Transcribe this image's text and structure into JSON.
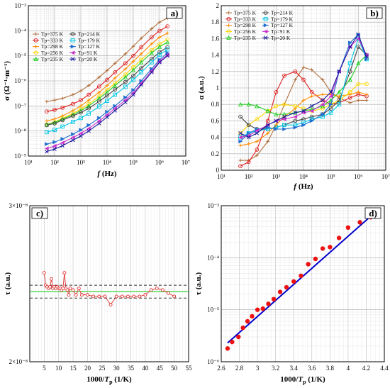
{
  "chart_data": [
    {
      "id": "a",
      "type": "line",
      "panel_label": "a)",
      "xlabel": "f (Hz)",
      "xlabel_main": "f",
      "xlabel_unit": " (Hz)",
      "ylabel": "σ (Ω⁻¹·m⁻¹)",
      "x_scale": "log",
      "y_scale": "log",
      "xlim_exp": [
        1,
        7
      ],
      "ylim_exp": [
        -9,
        -3
      ],
      "x_tick_labels": [
        "10¹",
        "10²",
        "10³",
        "10⁴",
        "10⁵",
        "10⁶",
        "10⁷"
      ],
      "y_tick_labels": [
        "10⁻⁹",
        "10⁻⁸",
        "10⁻⁷",
        "10⁻⁶",
        "10⁻⁵",
        "10⁻⁴",
        "10⁻³"
      ],
      "grid": true,
      "legend": "top-left",
      "x": [
        50,
        100,
        200,
        500,
        1000,
        2000,
        5000,
        10000,
        20000,
        50000,
        100000,
        200000,
        500000,
        1000000,
        2000000
      ],
      "series": [
        {
          "name": "Tp=375 K",
          "color": "#b07040",
          "marker": "+",
          "values": [
            1.5e-07,
            1.7e-07,
            2e-07,
            2.8e-07,
            4e-07,
            6.5e-07,
            1.4e-06,
            2.6e-06,
            5e-06,
            1.2e-05,
            2.4e-05,
            5e-05,
            0.00012,
            0.00022,
            0.00032
          ]
        },
        {
          "name": "Tp=333 K",
          "color": "#e02020",
          "marker": "o",
          "values": [
            6e-08,
            7e-08,
            8.5e-08,
            1.2e-07,
            1.7e-07,
            2.8e-07,
            6e-07,
            1.1e-06,
            2.2e-06,
            5e-06,
            1e-05,
            2.2e-05,
            5.5e-05,
            0.0001,
            0.00015
          ]
        },
        {
          "name": "Tp=298 K",
          "color": "#ff8c00",
          "marker": "+",
          "values": [
            2.5e-08,
            3e-08,
            4e-08,
            6.5e-08,
            1e-07,
            1.7e-07,
            3.5e-07,
            6.5e-07,
            1.3e-06,
            3e-06,
            6e-06,
            1.2e-05,
            3e-05,
            5.5e-05,
            8e-05
          ]
        },
        {
          "name": "Tp=256 K",
          "color": "#ffd700",
          "marker": "o",
          "values": [
            1.8e-08,
            2.3e-08,
            3.2e-08,
            5e-08,
            7.5e-08,
            1.2e-07,
            2.4e-07,
            4.3e-07,
            8e-07,
            1.8e-06,
            3.5e-06,
            7e-06,
            1.7e-05,
            3e-05,
            4.5e-05
          ]
        },
        {
          "name": "Tp=235 K",
          "color": "#22cc22",
          "marker": "^",
          "values": [
            1.8e-08,
            2.2e-08,
            3e-08,
            4.5e-08,
            6.5e-08,
            1e-07,
            2e-07,
            3.5e-07,
            6.5e-07,
            1.4e-06,
            2.7e-06,
            5.5e-06,
            1.3e-05,
            2.3e-05,
            3.5e-05
          ]
        },
        {
          "name": "Tp=214 K",
          "color": "#444444",
          "marker": "o",
          "values": [
            1.7e-08,
            2e-08,
            2.7e-08,
            4e-08,
            5.5e-08,
            8e-08,
            1.5e-07,
            2.6e-07,
            4.5e-07,
            9e-07,
            1.6e-06,
            3.2e-06,
            7.5e-06,
            1.4e-05,
            2.2e-05
          ]
        },
        {
          "name": "Tp=179 K",
          "color": "#00c8e8",
          "marker": "s",
          "values": [
            9e-09,
            1.1e-08,
            1.5e-08,
            2.3e-08,
            3.3e-08,
            5e-08,
            9.5e-08,
            1.6e-07,
            2.8e-07,
            5.8e-07,
            1.1e-06,
            2.2e-06,
            5.5e-06,
            1.1e-05,
            1.8e-05
          ]
        },
        {
          "name": "Tp=127 K",
          "color": "#1e6ed0",
          "marker": ">",
          "values": [
            3e-09,
            3.6e-09,
            4.8e-09,
            7.5e-09,
            1.1e-08,
            1.7e-08,
            3.3e-08,
            5.8e-08,
            1e-07,
            2.2e-07,
            4.3e-07,
            1e-06,
            3e-06,
            7e-06,
            1.3e-05
          ]
        },
        {
          "name": "Tp=91 K",
          "color": "#cc33cc",
          "marker": "<",
          "values": [
            2e-09,
            2.5e-09,
            3.4e-09,
            5.5e-09,
            8e-09,
            1.25e-08,
            2.5e-08,
            4.4e-08,
            8e-08,
            1.7e-07,
            3.3e-07,
            8e-07,
            2.5e-06,
            6e-06,
            1.1e-05
          ]
        },
        {
          "name": "Tp=20 K",
          "color": "#1a1a9e",
          "marker": "x",
          "values": [
            1.5e-09,
            1.9e-09,
            2.6e-09,
            4.3e-09,
            6.3e-09,
            1e-08,
            2e-08,
            3.6e-08,
            6.5e-08,
            1.4e-07,
            2.8e-07,
            7e-07,
            2.2e-06,
            5.5e-06,
            1e-05
          ]
        }
      ]
    },
    {
      "id": "b",
      "type": "line",
      "panel_label": "b)",
      "xlabel": "f (Hz)",
      "xlabel_main": "f",
      "xlabel_unit": " (Hz)",
      "ylabel": "α (a.u.)",
      "x_scale": "log",
      "y_scale": "linear",
      "xlim_exp": [
        1,
        7
      ],
      "ylim": [
        0,
        2
      ],
      "x_tick_labels": [
        "10¹",
        "10²",
        "10³",
        "10⁴",
        "10⁵",
        "10⁶",
        "10⁷"
      ],
      "y_ticks": [
        0,
        0.2,
        0.4,
        0.6,
        0.8,
        1,
        1.2,
        1.4,
        1.6,
        1.8,
        2
      ],
      "y_tick_labels": [
        "0",
        "0.2",
        "0.4",
        "0.6",
        "0.8",
        "1",
        "1.2",
        "1.4",
        "1.6",
        "1.8",
        "2"
      ],
      "grid": true,
      "legend": "top-left",
      "x": [
        50,
        100,
        200,
        500,
        1000,
        2000,
        5000,
        10000,
        20000,
        50000,
        100000,
        200000,
        500000,
        1000000,
        2000000
      ],
      "series": [
        {
          "name": "Tp=375 K",
          "color": "#b07040",
          "marker": "+",
          "values": [
            0.12,
            0.12,
            0.18,
            0.35,
            0.55,
            0.8,
            1.1,
            1.25,
            1.22,
            1.1,
            0.95,
            0.88,
            0.82,
            0.85,
            0.85
          ]
        },
        {
          "name": "Tp=333 K",
          "color": "#e02020",
          "marker": "o",
          "values": [
            0.05,
            0.1,
            0.25,
            0.6,
            0.95,
            1.15,
            1.2,
            1.1,
            0.95,
            0.85,
            0.8,
            0.82,
            0.88,
            0.92,
            0.9
          ]
        },
        {
          "name": "Tp=298 K",
          "color": "#ff8c00",
          "marker": "+",
          "values": [
            0.3,
            0.32,
            0.35,
            0.45,
            0.55,
            0.65,
            0.75,
            0.85,
            0.9,
            0.92,
            0.92,
            0.9,
            0.92,
            0.95,
            0.92
          ]
        },
        {
          "name": "Tp=256 K",
          "color": "#ffd700",
          "marker": "o",
          "values": [
            0.45,
            0.55,
            0.62,
            0.72,
            0.78,
            0.8,
            0.78,
            0.75,
            0.72,
            0.75,
            0.8,
            0.85,
            0.95,
            1.05,
            1.05
          ]
        },
        {
          "name": "Tp=235 K",
          "color": "#22cc22",
          "marker": "^",
          "values": [
            0.8,
            0.8,
            0.78,
            0.72,
            0.68,
            0.68,
            0.7,
            0.72,
            0.74,
            0.78,
            0.85,
            0.95,
            1.1,
            1.3,
            1.4
          ]
        },
        {
          "name": "Tp=214 K",
          "color": "#444444",
          "marker": "o",
          "values": [
            0.65,
            0.55,
            0.5,
            0.5,
            0.52,
            0.55,
            0.6,
            0.62,
            0.65,
            0.68,
            0.75,
            0.85,
            1.2,
            1.5,
            1.4
          ]
        },
        {
          "name": "Tp=179 K",
          "color": "#00c8e8",
          "marker": "s",
          "values": [
            0.4,
            0.45,
            0.48,
            0.5,
            0.52,
            0.55,
            0.55,
            0.58,
            0.62,
            0.65,
            0.7,
            0.8,
            1.3,
            1.6,
            1.35
          ]
        },
        {
          "name": "Tp=127 K",
          "color": "#1e6ed0",
          "marker": ">",
          "values": [
            0.35,
            0.45,
            0.5,
            0.52,
            0.5,
            0.5,
            0.52,
            0.55,
            0.6,
            0.68,
            0.8,
            1.2,
            1.55,
            1.65,
            1.35
          ]
        },
        {
          "name": "Tp=91 K",
          "color": "#cc33cc",
          "marker": "<",
          "values": [
            0.4,
            0.42,
            0.48,
            0.55,
            0.6,
            0.62,
            0.65,
            0.7,
            0.72,
            0.8,
            0.9,
            1.2,
            1.5,
            1.6,
            1.4
          ]
        },
        {
          "name": "Tp=20 K",
          "color": "#1a1a9e",
          "marker": "x",
          "values": [
            0.45,
            0.4,
            0.45,
            0.55,
            0.6,
            0.65,
            0.7,
            0.72,
            0.78,
            0.85,
            0.95,
            1.2,
            1.5,
            1.65,
            1.38
          ]
        }
      ]
    },
    {
      "id": "c",
      "type": "line",
      "panel_label": "c)",
      "xlabel": "1000/Tp (1/K)",
      "xlabel_main": "1000/",
      "xlabel_var": "T",
      "xlabel_sub": "p",
      "xlabel_unit": " (1/K)",
      "ylabel": "τ (a.u.)",
      "xlim": [
        0,
        55
      ],
      "x_ticks": [
        5,
        10,
        15,
        20,
        25,
        30,
        35,
        40,
        45,
        50,
        55
      ],
      "y_scale": "log",
      "ylim": [
        2e-08,
        3e-08
      ],
      "y_tick_labels": [
        "2×10⁻⁸",
        "3×10⁻⁸"
      ],
      "grid": true,
      "series": [
        {
          "name": "τ",
          "color": "#e03030",
          "marker": "o",
          "x": [
            5,
            5.5,
            6,
            6.5,
            7,
            7.5,
            8,
            8.5,
            9,
            9.5,
            10,
            10.5,
            11,
            11.5,
            12,
            12.5,
            13,
            13.5,
            14,
            15,
            16,
            17,
            18,
            20,
            22,
            24,
            26,
            28,
            30,
            32,
            34,
            36,
            38,
            40,
            42,
            44,
            46,
            48,
            50
          ],
          "values": [
            2.52e-08,
            2.44e-08,
            2.43e-08,
            2.42e-08,
            2.43e-08,
            2.48e-08,
            2.42e-08,
            2.43e-08,
            2.42e-08,
            2.43e-08,
            2.42e-08,
            2.42e-08,
            2.41e-08,
            2.42e-08,
            2.52e-08,
            2.42e-08,
            2.41e-08,
            2.38e-08,
            2.42e-08,
            2.41e-08,
            2.38e-08,
            2.42e-08,
            2.38e-08,
            2.38e-08,
            2.37e-08,
            2.37e-08,
            2.37e-08,
            2.32e-08,
            2.37e-08,
            2.37e-08,
            2.37e-08,
            2.37e-08,
            2.37e-08,
            2.38e-08,
            2.41e-08,
            2.42e-08,
            2.41e-08,
            2.39e-08,
            2.37e-08
          ]
        }
      ],
      "reference_lines": [
        {
          "value": 2.4e-08,
          "color": "#22cc22",
          "style": "solid"
        },
        {
          "value": 2.44e-08,
          "color": "#333333",
          "style": "dashed"
        },
        {
          "value": 2.36e-08,
          "color": "#333333",
          "style": "dashed"
        }
      ]
    },
    {
      "id": "d",
      "type": "scatter",
      "panel_label": "d)",
      "xlabel": "1000/Tp (1/K)",
      "xlabel_main": "1000/",
      "xlabel_var": "T",
      "xlabel_sub": "p",
      "xlabel_unit": " (1/K)",
      "ylabel": "τ (a.u.)",
      "xlim": [
        2.6,
        4.4
      ],
      "x_ticks": [
        2.6,
        2.8,
        3,
        3.2,
        3.4,
        3.6,
        3.8,
        4,
        4.2,
        4.4
      ],
      "x_tick_labels": [
        "2.6",
        "2.8",
        "3",
        "3.2",
        "3.4",
        "3.6",
        "3.8",
        "4",
        "4.2",
        "4.4"
      ],
      "y_scale": "log",
      "ylim_exp": [
        -6,
        -3
      ],
      "y_tick_labels": [
        "10⁻⁶",
        "10⁻⁵",
        "10⁻⁴",
        "10⁻³"
      ],
      "grid": true,
      "series": [
        {
          "name": "τ",
          "color": "#ee1111",
          "marker": "o",
          "x": [
            2.67,
            2.72,
            2.79,
            2.84,
            2.89,
            2.94,
            3.0,
            3.06,
            3.12,
            3.18,
            3.25,
            3.32,
            3.4,
            3.48,
            3.56,
            3.64,
            3.72,
            3.8,
            3.9,
            4.0,
            4.13,
            4.25
          ],
          "values": [
            1.8e-06,
            2.4e-06,
            3e-06,
            4.5e-06,
            6e-06,
            7.5e-06,
            1e-05,
            1.05e-05,
            1.3e-05,
            1.6e-05,
            2.2e-05,
            2.7e-05,
            3.5e-05,
            4.5e-05,
            7.5e-05,
            9.5e-05,
            0.00015,
            0.00016,
            0.00024,
            0.00038,
            0.00048,
            0.0006
          ]
        }
      ],
      "fit_line": {
        "color": "#0000cc",
        "x": [
          2.67,
          4.3
        ],
        "values": [
          2.3e-06,
          0.00075
        ]
      }
    }
  ]
}
